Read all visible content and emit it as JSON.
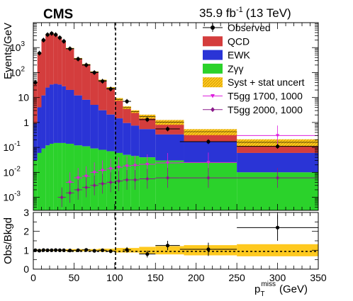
{
  "header": {
    "experiment": "CMS",
    "luminosity_base": "35.9 fb",
    "luminosity_exp": "-1",
    "energy": "(13 TeV)"
  },
  "chart_data": {
    "type": "bar",
    "ylabel": "Events/GeV",
    "ratio_ylabel": "Obs/Bkgd",
    "xlabel_main": "p",
    "xlabel_sub": "T",
    "xlabel_sup": "miss",
    "xlabel_unit": "(GeV)",
    "x_ticks": [
      "0",
      "50",
      "100",
      "150",
      "200",
      "250",
      "300",
      "350"
    ],
    "y_ticks": [
      "10",
      "10",
      "10",
      "1",
      "10",
      "10",
      "10"
    ],
    "y_tick_exps": [
      "3",
      "2",
      "",
      "",
      "-1",
      "-2",
      "-3"
    ],
    "ratio_y_ticks": [
      "0",
      "1",
      "2",
      "3"
    ],
    "xlim": [
      0,
      350
    ],
    "ylim": [
      0.0003,
      10000
    ],
    "ylog": true,
    "ratio_ylim": [
      0,
      3
    ],
    "cut_line_x": 100,
    "colors": {
      "QCD": "#d43d3d",
      "EWK": "#2a34d6",
      "Zgg": "#2bd22b",
      "syst": "#ffc91f",
      "T5gg_1700": "#dd20dd",
      "T5gg_2000": "#8a1a8a"
    },
    "legend": [
      {
        "label": "Observed",
        "key": "observed"
      },
      {
        "label": "QCD",
        "key": "QCD"
      },
      {
        "label": "EWK",
        "key": "EWK"
      },
      {
        "label": "Zγγ",
        "key": "Zgg"
      },
      {
        "label": "Syst + stat uncert",
        "key": "syst"
      },
      {
        "label": "T5gg 1700, 1000",
        "key": "T5gg_1700"
      },
      {
        "label": "T5gg 2000, 1000",
        "key": "T5gg_2000"
      }
    ],
    "bins": [
      {
        "lo": 0,
        "hi": 5,
        "Zgg": 0.03,
        "EWK": 0.9,
        "QCD": 40
      },
      {
        "lo": 5,
        "hi": 10,
        "Zgg": 0.06,
        "EWK": 4,
        "QCD": 600
      },
      {
        "lo": 10,
        "hi": 15,
        "Zgg": 0.09,
        "EWK": 12,
        "QCD": 2000
      },
      {
        "lo": 15,
        "hi": 20,
        "Zgg": 0.12,
        "EWK": 25,
        "QCD": 3300
      },
      {
        "lo": 20,
        "hi": 25,
        "Zgg": 0.14,
        "EWK": 33,
        "QCD": 3700
      },
      {
        "lo": 25,
        "hi": 30,
        "Zgg": 0.15,
        "EWK": 35,
        "QCD": 3300
      },
      {
        "lo": 30,
        "hi": 35,
        "Zgg": 0.15,
        "EWK": 33,
        "QCD": 2500
      },
      {
        "lo": 35,
        "hi": 40,
        "Zgg": 0.15,
        "EWK": 28,
        "QCD": 1800
      },
      {
        "lo": 40,
        "hi": 50,
        "Zgg": 0.14,
        "EWK": 20,
        "QCD": 900
      },
      {
        "lo": 50,
        "hi": 60,
        "Zgg": 0.12,
        "EWK": 12,
        "QCD": 350
      },
      {
        "lo": 60,
        "hi": 70,
        "Zgg": 0.11,
        "EWK": 8,
        "QCD": 200
      },
      {
        "lo": 70,
        "hi": 80,
        "Zgg": 0.09,
        "EWK": 5,
        "QCD": 100
      },
      {
        "lo": 80,
        "hi": 90,
        "Zgg": 0.08,
        "EWK": 3,
        "QCD": 45
      },
      {
        "lo": 90,
        "hi": 100,
        "Zgg": 0.07,
        "EWK": 2,
        "QCD": 22
      },
      {
        "lo": 100,
        "hi": 110,
        "Zgg": 0.06,
        "EWK": 1.4,
        "QCD": 7
      },
      {
        "lo": 110,
        "hi": 120,
        "Zgg": 0.05,
        "EWK": 0.9,
        "QCD": 3
      },
      {
        "lo": 120,
        "hi": 130,
        "Zgg": 0.045,
        "EWK": 0.7,
        "QCD": 2
      },
      {
        "lo": 130,
        "hi": 150,
        "Zgg": 0.04,
        "EWK": 0.5,
        "QCD": 1.2
      },
      {
        "lo": 150,
        "hi": 185,
        "Zgg": 0.03,
        "EWK": 0.3,
        "QCD": 0.7
      },
      {
        "lo": 185,
        "hi": 250,
        "Zgg": 0.025,
        "EWK": 0.15,
        "QCD": 0.25
      },
      {
        "lo": 250,
        "hi": 350,
        "Zgg": 0.01,
        "EWK": 0.05,
        "QCD": 0.1
      }
    ],
    "observed": [
      {
        "x": 2.5,
        "xerr": 2.5,
        "y": 40
      },
      {
        "x": 7.5,
        "xerr": 2.5,
        "y": 600
      },
      {
        "x": 12.5,
        "xerr": 2.5,
        "y": 2000
      },
      {
        "x": 17.5,
        "xerr": 2.5,
        "y": 3300
      },
      {
        "x": 22.5,
        "xerr": 2.5,
        "y": 3700
      },
      {
        "x": 27.5,
        "xerr": 2.5,
        "y": 3300
      },
      {
        "x": 32.5,
        "xerr": 2.5,
        "y": 2500
      },
      {
        "x": 37.5,
        "xerr": 2.5,
        "y": 1800
      },
      {
        "x": 45,
        "xerr": 5,
        "y": 900
      },
      {
        "x": 55,
        "xerr": 5,
        "y": 350
      },
      {
        "x": 65,
        "xerr": 5,
        "y": 200
      },
      {
        "x": 75,
        "xerr": 5,
        "y": 100
      },
      {
        "x": 85,
        "xerr": 5,
        "y": 45
      },
      {
        "x": 95,
        "xerr": 5,
        "y": 22
      },
      {
        "x": 115,
        "xerr": 5,
        "y": 7
      },
      {
        "x": 140,
        "xerr": 10,
        "y": 1.3
      },
      {
        "x": 165,
        "xerr": 15,
        "y": 0.55
      },
      {
        "x": 215,
        "xerr": 35,
        "y": 0.17
      },
      {
        "x": 300,
        "xerr": 50,
        "y": 0.11
      }
    ],
    "T5gg_1700": [
      {
        "x": 45,
        "xerr": 5,
        "y": 0.004
      },
      {
        "x": 55,
        "xerr": 5,
        "y": 0.006
      },
      {
        "x": 65,
        "xerr": 5,
        "y": 0.007
      },
      {
        "x": 75,
        "xerr": 5,
        "y": 0.01
      },
      {
        "x": 85,
        "xerr": 5,
        "y": 0.012
      },
      {
        "x": 95,
        "xerr": 5,
        "y": 0.014
      },
      {
        "x": 105,
        "xerr": 5,
        "y": 0.016
      },
      {
        "x": 115,
        "xerr": 5,
        "y": 0.018
      },
      {
        "x": 125,
        "xerr": 5,
        "y": 0.019
      },
      {
        "x": 140,
        "xerr": 10,
        "y": 0.021
      },
      {
        "x": 165,
        "xerr": 15,
        "y": 0.024
      },
      {
        "x": 215,
        "xerr": 35,
        "y": 0.025
      },
      {
        "x": 300,
        "xerr": 50,
        "y": 0.3
      }
    ],
    "T5gg_2000": [
      {
        "x": 35,
        "xerr": 5,
        "y": 0.001
      },
      {
        "x": 45,
        "xerr": 5,
        "y": 0.0015
      },
      {
        "x": 55,
        "xerr": 5,
        "y": 0.002
      },
      {
        "x": 65,
        "xerr": 5,
        "y": 0.0025
      },
      {
        "x": 75,
        "xerr": 5,
        "y": 0.003
      },
      {
        "x": 85,
        "xerr": 5,
        "y": 0.0035
      },
      {
        "x": 95,
        "xerr": 5,
        "y": 0.004
      },
      {
        "x": 105,
        "xerr": 5,
        "y": 0.0045
      },
      {
        "x": 115,
        "xerr": 5,
        "y": 0.005
      },
      {
        "x": 125,
        "xerr": 5,
        "y": 0.005
      },
      {
        "x": 140,
        "xerr": 10,
        "y": 0.0055
      },
      {
        "x": 165,
        "xerr": 15,
        "y": 0.006
      },
      {
        "x": 215,
        "xerr": 35,
        "y": 0.006
      },
      {
        "x": 300,
        "xerr": 50,
        "y": 0.006
      }
    ],
    "ratio": [
      {
        "x": 2.5,
        "xerr": 2.5,
        "y": 1.0,
        "yerr": 0.05
      },
      {
        "x": 7.5,
        "xerr": 2.5,
        "y": 0.98,
        "yerr": 0.03
      },
      {
        "x": 12.5,
        "xerr": 2.5,
        "y": 1.01,
        "yerr": 0.02
      },
      {
        "x": 17.5,
        "xerr": 2.5,
        "y": 1.0,
        "yerr": 0.02
      },
      {
        "x": 22.5,
        "xerr": 2.5,
        "y": 1.0,
        "yerr": 0.02
      },
      {
        "x": 27.5,
        "xerr": 2.5,
        "y": 1.01,
        "yerr": 0.02
      },
      {
        "x": 32.5,
        "xerr": 2.5,
        "y": 1.0,
        "yerr": 0.02
      },
      {
        "x": 37.5,
        "xerr": 2.5,
        "y": 1.0,
        "yerr": 0.02
      },
      {
        "x": 45,
        "xerr": 5,
        "y": 0.99,
        "yerr": 0.03
      },
      {
        "x": 55,
        "xerr": 5,
        "y": 1.0,
        "yerr": 0.04
      },
      {
        "x": 65,
        "xerr": 5,
        "y": 1.02,
        "yerr": 0.05
      },
      {
        "x": 75,
        "xerr": 5,
        "y": 0.97,
        "yerr": 0.06
      },
      {
        "x": 85,
        "xerr": 5,
        "y": 1.0,
        "yerr": 0.08
      },
      {
        "x": 95,
        "xerr": 5,
        "y": 0.95,
        "yerr": 0.1
      },
      {
        "x": 115,
        "xerr": 5,
        "y": 1.02,
        "yerr": 0.15
      },
      {
        "x": 140,
        "xerr": 10,
        "y": 0.8,
        "yerr": 0.18
      },
      {
        "x": 165,
        "xerr": 15,
        "y": 1.25,
        "yerr": 0.25
      },
      {
        "x": 215,
        "xerr": 35,
        "y": 1.05,
        "yerr": 0.35
      },
      {
        "x": 300,
        "xerr": 50,
        "y": 2.2,
        "yerr": 0.7
      }
    ],
    "ratio_band": [
      {
        "lo": 0,
        "hi": 40,
        "err": 0.04
      },
      {
        "lo": 40,
        "hi": 80,
        "err": 0.06
      },
      {
        "lo": 80,
        "hi": 100,
        "err": 0.08
      },
      {
        "lo": 100,
        "hi": 130,
        "err": 0.12
      },
      {
        "lo": 130,
        "hi": 150,
        "err": 0.18
      },
      {
        "lo": 150,
        "hi": 185,
        "err": 0.22
      },
      {
        "lo": 185,
        "hi": 250,
        "err": 0.27
      },
      {
        "lo": 250,
        "hi": 350,
        "err": 0.32
      }
    ]
  }
}
